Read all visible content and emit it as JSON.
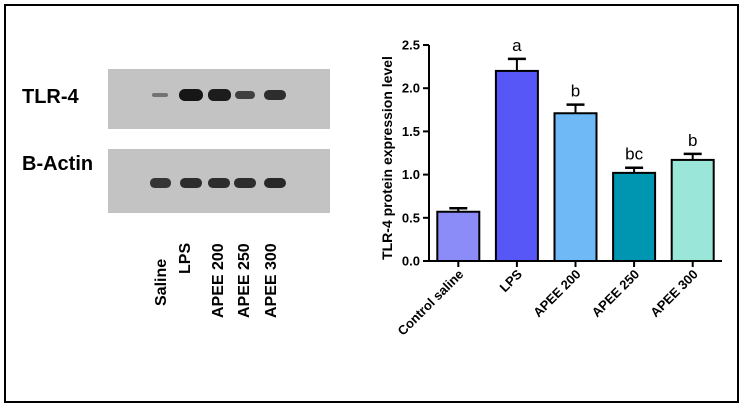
{
  "blot": {
    "rows": [
      {
        "label": "TLR-4",
        "intensities": [
          0.15,
          0.95,
          0.9,
          0.6,
          0.75
        ]
      },
      {
        "label": "B-Actin",
        "intensities": [
          0.7,
          0.75,
          0.75,
          0.75,
          0.8
        ]
      }
    ],
    "lanes": [
      "Saline",
      "LPS",
      "APEE 200",
      "APEE 250",
      "APEE 300"
    ]
  },
  "chart_data": {
    "type": "bar",
    "title": "",
    "xlabel": "",
    "ylabel": "TLR-4 protein expression level",
    "ylim": [
      0,
      2.5
    ],
    "yticks": [
      "0.0",
      "0.5",
      "1.0",
      "1.5",
      "2.0",
      "2.5"
    ],
    "categories": [
      "Control saline",
      "LPS",
      "APEE 200",
      "APEE 250",
      "APEE 300"
    ],
    "values": [
      0.57,
      2.2,
      1.71,
      1.02,
      1.17
    ],
    "errors": [
      0.04,
      0.14,
      0.1,
      0.06,
      0.07
    ],
    "annotations": [
      "",
      "a",
      "b",
      "bc",
      "b"
    ],
    "colors": [
      "#8c8cf8",
      "#5757f8",
      "#6fb9f6",
      "#0096b2",
      "#9ae6d8"
    ]
  }
}
